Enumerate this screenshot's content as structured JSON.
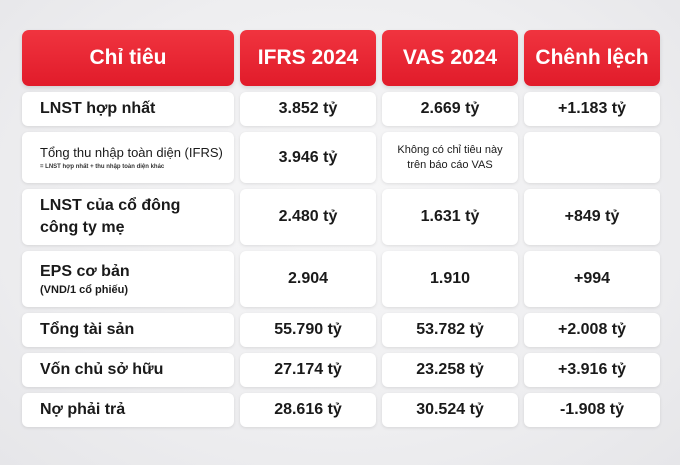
{
  "header": {
    "col0": "Chỉ tiêu",
    "col1": "IFRS 2024",
    "col2": "VAS 2024",
    "col3": "Chênh lệch"
  },
  "rows": [
    {
      "label": "LNST hợp nhất",
      "ifrs": "3.852 tỷ",
      "vas": "2.669 tỷ",
      "diff": "+1.183 tỷ"
    },
    {
      "label": "Tổng thu nhập toàn diện (IFRS)",
      "sub": "= LNST hợp nhất + thu nhập toàn diện khác",
      "ifrs": "3.946 tỷ",
      "vas_line1": "Không có chỉ tiêu này",
      "vas_line2": "trên báo cáo VAS",
      "diff": ""
    },
    {
      "label_line1": "LNST của cổ đông",
      "label_line2": "công ty mẹ",
      "ifrs": "2.480 tỷ",
      "vas": "1.631 tỷ",
      "diff": "+849 tỷ"
    },
    {
      "label": "EPS cơ bản",
      "unit": "(VND/1 cổ phiếu)",
      "ifrs": "2.904",
      "vas": "1.910",
      "diff": "+994"
    },
    {
      "label": "Tổng tài sản",
      "ifrs": "55.790 tỷ",
      "vas": "53.782 tỷ",
      "diff": "+2.008 tỷ"
    },
    {
      "label": "Vốn chủ sở hữu",
      "ifrs": "27.174 tỷ",
      "vas": "23.258 tỷ",
      "diff": "+3.916 tỷ"
    },
    {
      "label": "Nợ phải trả",
      "ifrs": "28.616 tỷ",
      "vas": "30.524 tỷ",
      "diff": "-1.908 tỷ"
    }
  ]
}
